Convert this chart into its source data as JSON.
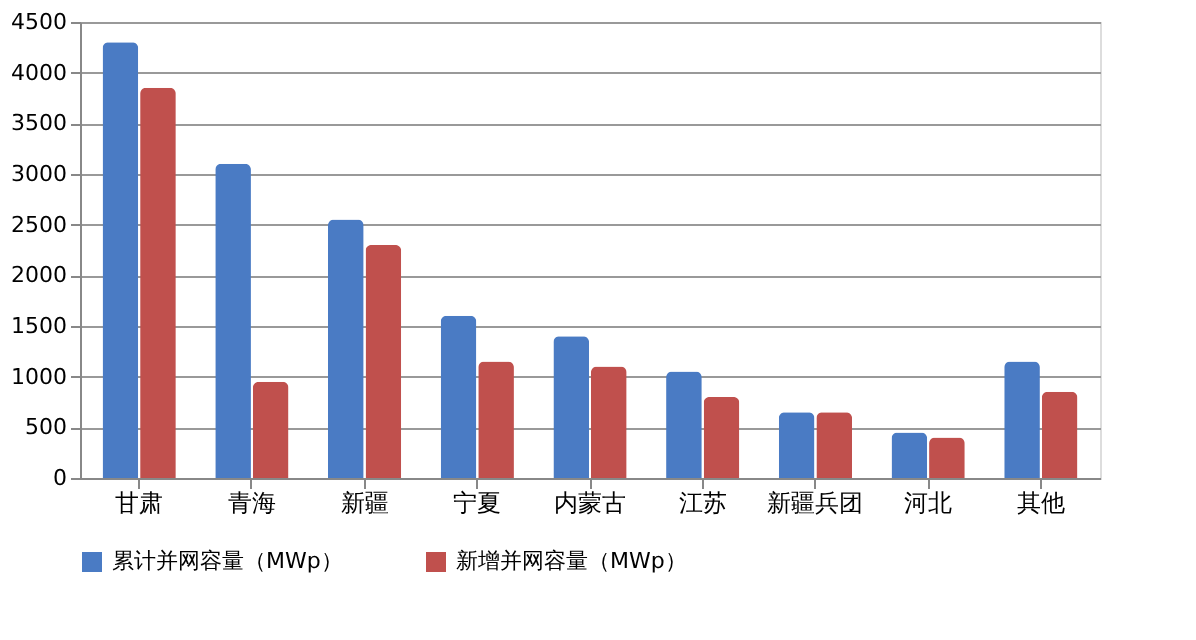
{
  "chart_data": {
    "type": "bar",
    "categories": [
      "甘肃",
      "青海",
      "新疆",
      "宁夏",
      "内蒙古",
      "江苏",
      "新疆兵团",
      "河北",
      "其他"
    ],
    "series": [
      {
        "name": "累计并网容量（MWp）",
        "color": "#4a7bc4",
        "values": [
          4300,
          3100,
          2550,
          1600,
          1400,
          1050,
          650,
          450,
          1150
        ]
      },
      {
        "name": "新增并网容量（MWp）",
        "color": "#c0504d",
        "values": [
          3850,
          950,
          2300,
          1150,
          1100,
          800,
          650,
          400,
          850
        ]
      }
    ],
    "ylim": [
      0,
      4500
    ],
    "yticks": [
      0,
      500,
      1000,
      1500,
      2000,
      2500,
      3000,
      3500,
      4000,
      4500
    ],
    "grid": "y",
    "legend": "bottom"
  }
}
